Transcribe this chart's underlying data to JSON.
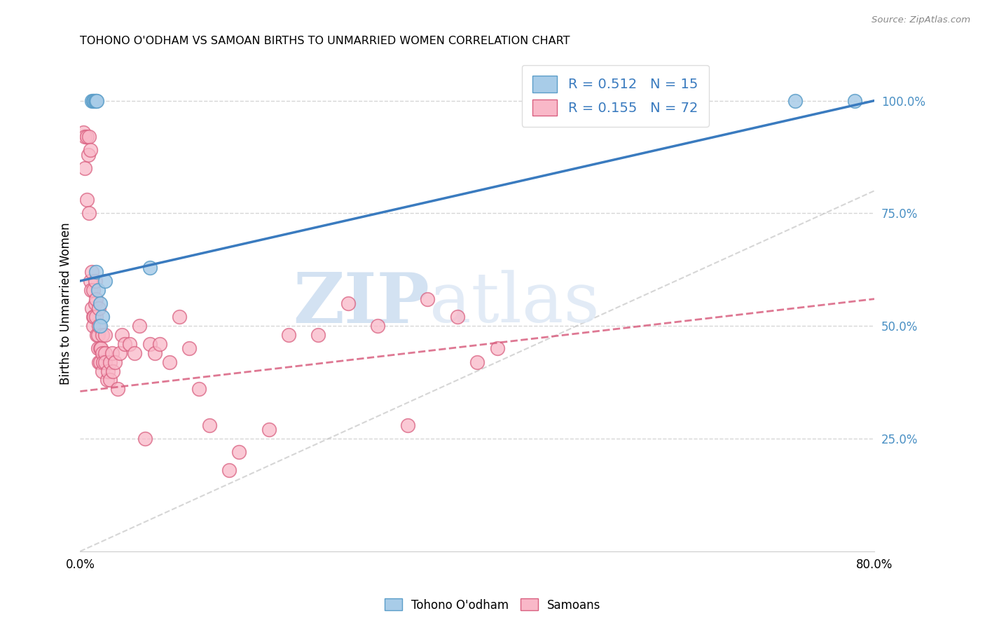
{
  "title": "TOHONO O'ODHAM VS SAMOAN BIRTHS TO UNMARRIED WOMEN CORRELATION CHART",
  "source": "Source: ZipAtlas.com",
  "ylabel": "Births to Unmarried Women",
  "xmin": 0.0,
  "xmax": 0.8,
  "ymin": 0.0,
  "ymax": 1.1,
  "ytick_labels_right": [
    "100.0%",
    "75.0%",
    "50.0%",
    "25.0%"
  ],
  "ytick_vals_right": [
    1.0,
    0.75,
    0.5,
    0.25
  ],
  "legend_blue_label": "R = 0.512   N = 15",
  "legend_pink_label": "R = 0.155   N = 72",
  "watermark_zip": "ZIP",
  "watermark_atlas": "atlas",
  "blue_scatter_color": "#a8cce8",
  "blue_scatter_edge": "#5b9ec9",
  "blue_line_color": "#3a7bbf",
  "pink_scatter_color": "#f9b8c8",
  "pink_scatter_edge": "#d96080",
  "pink_line_color": "#d96080",
  "right_axis_color": "#4a90c4",
  "grid_color": "#cccccc",
  "blue_line_x0": 0.0,
  "blue_line_y0": 0.6,
  "blue_line_x1": 0.8,
  "blue_line_y1": 1.0,
  "pink_line_x0": 0.0,
  "pink_line_y0": 0.355,
  "pink_line_x1": 0.8,
  "pink_line_y1": 0.56,
  "gray_line_x0": 0.0,
  "gray_line_y0": 0.0,
  "gray_line_x1": 0.8,
  "gray_line_y1": 0.8,
  "tohono_x": [
    0.012,
    0.013,
    0.014,
    0.015,
    0.016,
    0.017,
    0.016,
    0.018,
    0.02,
    0.022,
    0.02,
    0.025,
    0.07,
    0.72,
    0.78
  ],
  "tohono_y": [
    1.0,
    1.0,
    1.0,
    1.0,
    1.0,
    1.0,
    0.62,
    0.58,
    0.55,
    0.52,
    0.5,
    0.6,
    0.63,
    1.0,
    1.0
  ],
  "samoan_x": [
    0.003,
    0.005,
    0.005,
    0.007,
    0.007,
    0.008,
    0.009,
    0.009,
    0.01,
    0.01,
    0.011,
    0.012,
    0.012,
    0.013,
    0.013,
    0.013,
    0.014,
    0.015,
    0.015,
    0.016,
    0.016,
    0.017,
    0.018,
    0.018,
    0.019,
    0.019,
    0.019,
    0.02,
    0.02,
    0.021,
    0.022,
    0.022,
    0.022,
    0.023,
    0.025,
    0.025,
    0.025,
    0.027,
    0.028,
    0.03,
    0.03,
    0.032,
    0.033,
    0.035,
    0.038,
    0.04,
    0.042,
    0.045,
    0.05,
    0.055,
    0.06,
    0.065,
    0.07,
    0.075,
    0.08,
    0.09,
    0.1,
    0.11,
    0.12,
    0.13,
    0.15,
    0.16,
    0.19,
    0.21,
    0.24,
    0.27,
    0.3,
    0.33,
    0.35,
    0.38,
    0.4,
    0.42
  ],
  "samoan_y": [
    0.93,
    0.92,
    0.85,
    0.92,
    0.78,
    0.88,
    0.92,
    0.75,
    0.89,
    0.6,
    0.58,
    0.54,
    0.62,
    0.58,
    0.52,
    0.5,
    0.52,
    0.6,
    0.55,
    0.52,
    0.56,
    0.48,
    0.48,
    0.45,
    0.42,
    0.5,
    0.54,
    0.45,
    0.42,
    0.45,
    0.44,
    0.48,
    0.4,
    0.42,
    0.44,
    0.48,
    0.42,
    0.38,
    0.4,
    0.42,
    0.38,
    0.44,
    0.4,
    0.42,
    0.36,
    0.44,
    0.48,
    0.46,
    0.46,
    0.44,
    0.5,
    0.25,
    0.46,
    0.44,
    0.46,
    0.42,
    0.52,
    0.45,
    0.36,
    0.28,
    0.18,
    0.22,
    0.27,
    0.48,
    0.48,
    0.55,
    0.5,
    0.28,
    0.56,
    0.52,
    0.42,
    0.45
  ],
  "bottom_legend_labels": [
    "Tohono O'odham",
    "Samoans"
  ]
}
